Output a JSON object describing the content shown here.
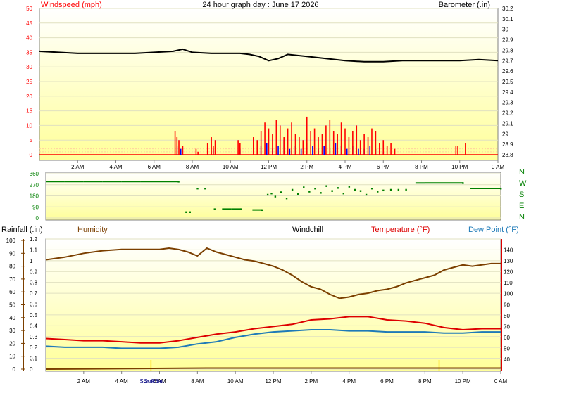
{
  "title": "24 hour graph day : June 17 2026",
  "time_ticks": [
    "2 AM",
    "4 AM",
    "6 AM",
    "8 AM",
    "10 AM",
    "12 PM",
    "2 PM",
    "4 PM",
    "6 PM",
    "8 PM",
    "10 PM",
    "0 AM"
  ],
  "sun_labels": {
    "sunrise": "Sun Rise",
    "sunset": "Sun Set"
  },
  "colors": {
    "plot_bg_top": "#ffffff",
    "plot_bg_bottom": "#ffff99",
    "windspeed": "#ff0000",
    "gust": "#0000ff",
    "barometer": "#000000",
    "direction": "#008000",
    "humidity": "#7b3f00",
    "temperature": "#dd0000",
    "dewpoint": "#1e7ab8",
    "rainfall": "#7b3f00",
    "sun_marker": "#ffd700"
  },
  "chart_data": [
    {
      "type": "line",
      "panel": "wind-barometer",
      "title": "24 hour graph day : June 17 2026",
      "left_axis": {
        "label": "Windspeed (mph)",
        "ticks": [
          0,
          5,
          10,
          15,
          20,
          25,
          30,
          35,
          40,
          45,
          50
        ],
        "ylim": [
          0,
          50
        ]
      },
      "right_axis": {
        "label": "Barometer (.in)",
        "ticks": [
          "28.8",
          "28.9",
          "29",
          "29.1",
          "29.2",
          "29.3",
          "29.4",
          "29.5",
          "29.6",
          "29.7",
          "29.8",
          "29.9",
          "30",
          "30.1",
          "30.2"
        ],
        "ylim": [
          28.8,
          30.2
        ]
      },
      "barometer": {
        "x": [
          0,
          1,
          2,
          3,
          4,
          5,
          6,
          7,
          7.5,
          8,
          9,
          10,
          10.5,
          11,
          11.5,
          12,
          12.5,
          13,
          14,
          15,
          16,
          17,
          18,
          19,
          20,
          21,
          22,
          23,
          24
        ],
        "values": [
          29.79,
          29.78,
          29.77,
          29.77,
          29.77,
          29.77,
          29.78,
          29.79,
          29.81,
          29.78,
          29.77,
          29.77,
          29.77,
          29.76,
          29.74,
          29.7,
          29.72,
          29.76,
          29.74,
          29.72,
          29.7,
          29.69,
          29.69,
          29.7,
          29.7,
          29.7,
          29.7,
          29.71,
          29.7
        ]
      },
      "series": [
        {
          "name": "Windspeed",
          "x": [
            7.1,
            7.2,
            7.3,
            7.5,
            8.2,
            8.3,
            8.8,
            9.0,
            9.1,
            9.2,
            10.4,
            10.5,
            11.2,
            11.4,
            11.6,
            11.8,
            12.0,
            12.2,
            12.4,
            12.6,
            12.8,
            13.0,
            13.2,
            13.4,
            13.6,
            13.8,
            14.0,
            14.2,
            14.4,
            14.6,
            14.8,
            15.0,
            15.2,
            15.4,
            15.6,
            15.8,
            16.0,
            16.2,
            16.4,
            16.6,
            16.8,
            17.0,
            17.2,
            17.4,
            17.6,
            17.8,
            18.0,
            18.2,
            18.4,
            18.6,
            21.8,
            21.9,
            22.3
          ],
          "values": [
            8,
            6,
            5,
            3,
            2,
            1,
            4,
            6,
            3,
            5,
            5,
            4,
            6,
            5,
            8,
            11,
            9,
            7,
            12,
            10,
            6,
            9,
            11,
            7,
            6,
            5,
            13,
            8,
            9,
            6,
            7,
            10,
            12,
            8,
            7,
            11,
            9,
            6,
            8,
            10,
            5,
            7,
            6,
            9,
            8,
            4,
            5,
            3,
            4,
            2,
            3,
            3,
            4
          ]
        },
        {
          "name": "Gust",
          "x": [
            7.2,
            7.4,
            9.1,
            10.5,
            11.6,
            11.9,
            12.2,
            12.5,
            12.8,
            13.1,
            13.4,
            13.7,
            14.0,
            14.3,
            14.6,
            14.9,
            15.2,
            15.5,
            15.8,
            16.1,
            16.4,
            16.7,
            17.0,
            17.3,
            17.6,
            18.0
          ],
          "values": [
            3,
            2,
            2,
            2,
            3,
            4,
            2,
            3,
            5,
            2,
            3,
            2,
            4,
            3,
            2,
            3,
            2,
            4,
            3,
            2,
            3,
            2,
            2,
            3,
            2,
            1
          ]
        }
      ]
    },
    {
      "type": "scatter",
      "panel": "wind-direction",
      "left_axis": {
        "ticks": [
          0,
          90,
          180,
          270,
          360
        ],
        "ylim": [
          0,
          360
        ]
      },
      "compass": [
        "N",
        "W",
        "S",
        "E",
        "N"
      ],
      "series": [
        {
          "name": "Direction",
          "x": [
            0,
            1,
            2,
            3,
            4,
            5,
            6,
            7,
            7.4,
            7.6,
            8.0,
            8.4,
            8.9,
            9.3,
            9.8,
            10.3,
            10.9,
            11.4,
            11.7,
            11.9,
            12.1,
            12.4,
            12.7,
            13.0,
            13.3,
            13.6,
            13.9,
            14.2,
            14.5,
            14.8,
            15.1,
            15.4,
            15.7,
            16.0,
            16.3,
            16.6,
            16.9,
            17.2,
            17.5,
            17.8,
            18.2,
            18.6,
            19.0,
            19.5,
            20,
            21,
            22,
            22.4,
            23,
            24
          ],
          "values": [
            296,
            296,
            296,
            296,
            296,
            296,
            296,
            296,
            48,
            48,
            240,
            240,
            72,
            72,
            72,
            72,
            65,
            65,
            190,
            200,
            175,
            210,
            160,
            230,
            195,
            250,
            215,
            240,
            205,
            260,
            220,
            245,
            200,
            255,
            230,
            220,
            190,
            240,
            215,
            225,
            230,
            230,
            230,
            284,
            284,
            284,
            284,
            240,
            240,
            240
          ]
        }
      ]
    },
    {
      "type": "line",
      "panel": "temperature-humidity",
      "left_axis": {
        "label": "Rainfall (.in)",
        "ticks": [
          "0",
          "0.1",
          "0.2",
          "0.3",
          "0.4",
          "0.5",
          "0.6",
          "0.7",
          "0.8",
          "0.9",
          "1",
          "1.1",
          "1.2"
        ],
        "ylim": [
          0,
          1.2
        ]
      },
      "outer_left_axis": {
        "ticks": [
          0,
          10,
          20,
          30,
          40,
          50,
          60,
          70,
          80,
          90,
          100
        ],
        "ylim": [
          0,
          100
        ]
      },
      "right_axis": {
        "ticks": [
          40,
          50,
          60,
          70,
          80,
          90,
          100,
          110,
          120,
          130,
          140
        ],
        "ylim": [
          31,
          150
        ]
      },
      "legend": [
        "Humidity",
        "Windchill",
        "Temperature (°F)",
        "Dew Point (°F)"
      ],
      "series": [
        {
          "name": "Humidity",
          "axis": "outer_left",
          "x": [
            0,
            1,
            2,
            3,
            4,
            5,
            6,
            6.5,
            7,
            7.5,
            8,
            8.5,
            9,
            9.5,
            10,
            10.5,
            11,
            11.5,
            12,
            12.5,
            13,
            13.5,
            14,
            14.5,
            15,
            15.5,
            16,
            16.5,
            17,
            17.5,
            18,
            18.5,
            19,
            19.5,
            20,
            20.5,
            21,
            21.5,
            22,
            22.5,
            23,
            23.5,
            24
          ],
          "values": [
            85,
            87,
            90,
            92,
            93,
            93,
            93,
            94,
            93,
            91,
            88,
            94,
            91,
            89,
            87,
            85,
            84,
            82,
            80,
            77,
            73,
            68,
            64,
            62,
            58,
            55,
            56,
            58,
            59,
            61,
            62,
            64,
            67,
            69,
            71,
            73,
            77,
            79,
            81,
            80,
            81,
            82,
            82
          ]
        },
        {
          "name": "Temperature (°F)",
          "axis": "right",
          "x": [
            0,
            1,
            2,
            3,
            4,
            5,
            6,
            7,
            8,
            9,
            10,
            11,
            12,
            13,
            14,
            15,
            16,
            17,
            18,
            19,
            20,
            21,
            22,
            23,
            24
          ],
          "values": [
            59,
            58,
            57,
            57,
            56,
            55,
            55,
            57,
            60,
            63,
            65,
            68,
            70,
            72,
            76,
            77,
            79,
            79,
            76,
            75,
            73,
            69,
            67,
            68,
            68
          ]
        },
        {
          "name": "Dew Point (°F)",
          "axis": "right",
          "x": [
            0,
            1,
            2,
            3,
            4,
            5,
            6,
            7,
            8,
            9,
            10,
            11,
            12,
            13,
            14,
            15,
            16,
            17,
            18,
            19,
            20,
            21,
            22,
            23,
            24
          ],
          "values": [
            52,
            51,
            51,
            51,
            50,
            50,
            50,
            51,
            54,
            56,
            60,
            63,
            65,
            66,
            67,
            67,
            66,
            66,
            65,
            65,
            65,
            64,
            64,
            65,
            65
          ]
        },
        {
          "name": "Rainfall (.in)",
          "axis": "left",
          "x": [
            0,
            8.5,
            24
          ],
          "values": [
            0,
            0.01,
            0.01
          ]
        }
      ]
    }
  ]
}
